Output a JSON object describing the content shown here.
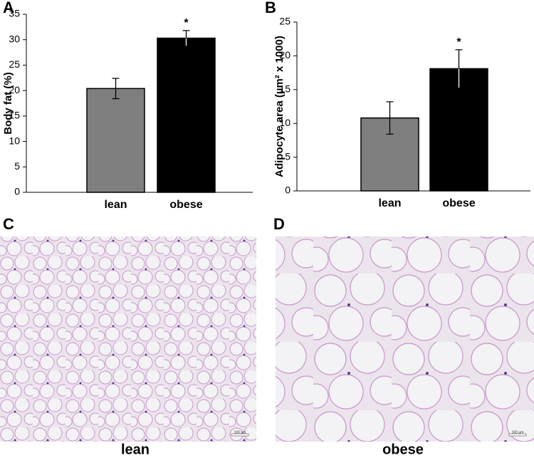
{
  "chart_data": [
    {
      "type": "bar",
      "panel": "A",
      "ylabel": "Body fat (%)",
      "categories": [
        "lean",
        "obese"
      ],
      "values": [
        20.4,
        30.3
      ],
      "errors": [
        2.0,
        1.5
      ],
      "colors": [
        "#7f7f7f",
        "#000000"
      ],
      "annotations": [
        null,
        "*"
      ],
      "ylim": [
        0,
        35
      ],
      "yticks": [
        0,
        5,
        10,
        15,
        20,
        25,
        30,
        35
      ]
    },
    {
      "type": "bar",
      "panel": "B",
      "ylabel": "Adipocyte area (µm² x 1000)",
      "categories": [
        "lean",
        "obese"
      ],
      "values": [
        10.8,
        18.1
      ],
      "errors": [
        2.4,
        2.8
      ],
      "colors": [
        "#7f7f7f",
        "#000000"
      ],
      "annotations": [
        null,
        "*"
      ],
      "ylim": [
        0,
        25
      ],
      "yticks": [
        0,
        5,
        10,
        15,
        20,
        25
      ]
    }
  ],
  "images": [
    {
      "panel": "C",
      "caption": "lean",
      "scale_bar": "100 µm"
    },
    {
      "panel": "D",
      "caption": "obese",
      "scale_bar": "100 µm"
    }
  ]
}
